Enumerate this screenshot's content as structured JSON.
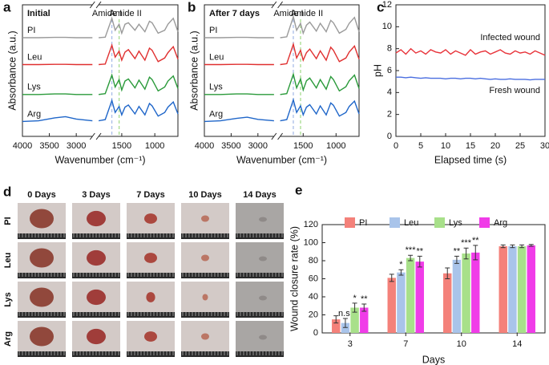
{
  "chart_data": [
    {
      "type": "line",
      "panel_label": "a",
      "title": "Initial",
      "x_label": "Wavenumber (cm⁻¹)",
      "y_label": "Absorbance (a.u.)",
      "xlim": [
        4000,
        650
      ],
      "xbreak": [
        2700,
        1850
      ],
      "xticks": [
        4000,
        3500,
        3000,
        1500,
        1000
      ],
      "ylim": [
        0,
        4.4
      ],
      "legend": "left",
      "x": [
        4000,
        3700,
        3400,
        3200,
        3000,
        2700,
        1850,
        1750,
        1650,
        1600,
        1540,
        1500,
        1450,
        1400,
        1300,
        1240,
        1150,
        1080,
        1040,
        950,
        850,
        800,
        720,
        650
      ],
      "annotations": [
        {
          "text": "Amide I",
          "x": 1650,
          "color": "#a9bde8"
        },
        {
          "text": "Amide II",
          "x": 1540,
          "color": "#a6dc8e"
        }
      ],
      "series": [
        {
          "name": "PI",
          "color": "#9a9a9a",
          "values": [
            3.3,
            3.3,
            3.31,
            3.31,
            3.3,
            3.3,
            3.3,
            3.32,
            3.95,
            3.55,
            3.75,
            3.45,
            3.75,
            3.8,
            3.55,
            3.75,
            3.5,
            3.85,
            3.8,
            3.45,
            3.55,
            3.75,
            3.95,
            3.5
          ]
        },
        {
          "name": "Leu",
          "color": "#e03030",
          "values": [
            2.4,
            2.4,
            2.41,
            2.41,
            2.4,
            2.4,
            2.4,
            2.42,
            3.05,
            2.65,
            2.85,
            2.55,
            2.82,
            2.9,
            2.6,
            2.85,
            2.55,
            2.95,
            2.88,
            2.5,
            2.62,
            2.8,
            3.0,
            2.58
          ]
        },
        {
          "name": "Lys",
          "color": "#2a9a3a",
          "values": [
            1.4,
            1.4,
            1.42,
            1.42,
            1.4,
            1.4,
            1.4,
            1.43,
            2.05,
            1.65,
            1.9,
            1.55,
            1.85,
            1.92,
            1.62,
            1.88,
            1.58,
            1.98,
            1.9,
            1.52,
            1.65,
            1.85,
            2.02,
            1.6
          ]
        },
        {
          "name": "Arg",
          "color": "#1f66c9",
          "values": [
            0.5,
            0.52,
            0.62,
            0.66,
            0.58,
            0.52,
            0.52,
            0.56,
            1.2,
            0.8,
            1.0,
            0.72,
            0.98,
            1.05,
            0.75,
            1.0,
            0.72,
            1.1,
            1.02,
            0.68,
            0.8,
            0.98,
            1.15,
            0.75
          ]
        }
      ]
    },
    {
      "type": "line",
      "panel_label": "b",
      "title": "After 7 days",
      "x_label": "Wavenumber (cm⁻¹)",
      "y_label": "Absorbance (a.u.)",
      "xlim": [
        4000,
        650
      ],
      "xbreak": [
        2700,
        1850
      ],
      "xticks": [
        4000,
        3500,
        3000,
        1500,
        1000
      ],
      "ylim": [
        0,
        4.4
      ],
      "legend": "left",
      "x": [
        4000,
        3700,
        3400,
        3200,
        3000,
        2700,
        1850,
        1750,
        1650,
        1600,
        1540,
        1500,
        1450,
        1400,
        1300,
        1240,
        1150,
        1080,
        1040,
        950,
        850,
        800,
        720,
        650
      ],
      "annotations": [
        {
          "text": "Amide I",
          "x": 1650,
          "color": "#a9bde8"
        },
        {
          "text": "Amide II",
          "x": 1540,
          "color": "#a6dc8e"
        }
      ],
      "series": [
        {
          "name": "PI",
          "color": "#9a9a9a",
          "values": [
            3.3,
            3.3,
            3.31,
            3.31,
            3.3,
            3.3,
            3.3,
            3.33,
            4.0,
            3.55,
            3.78,
            3.45,
            3.72,
            3.82,
            3.52,
            3.78,
            3.5,
            3.88,
            3.8,
            3.45,
            3.58,
            3.78,
            3.98,
            3.5
          ]
        },
        {
          "name": "Leu",
          "color": "#e03030",
          "values": [
            2.4,
            2.4,
            2.41,
            2.41,
            2.4,
            2.4,
            2.4,
            2.43,
            3.08,
            2.62,
            2.88,
            2.55,
            2.8,
            2.92,
            2.6,
            2.86,
            2.55,
            2.98,
            2.88,
            2.5,
            2.62,
            2.82,
            3.02,
            2.58
          ]
        },
        {
          "name": "Lys",
          "color": "#2a9a3a",
          "values": [
            1.4,
            1.4,
            1.42,
            1.42,
            1.4,
            1.4,
            1.4,
            1.43,
            2.08,
            1.62,
            1.92,
            1.55,
            1.86,
            1.95,
            1.62,
            1.9,
            1.58,
            2.0,
            1.9,
            1.52,
            1.66,
            1.86,
            2.05,
            1.6
          ]
        },
        {
          "name": "Arg",
          "color": "#1f66c9",
          "values": [
            0.5,
            0.52,
            0.6,
            0.64,
            0.57,
            0.52,
            0.52,
            0.56,
            1.22,
            0.8,
            1.02,
            0.72,
            0.98,
            1.06,
            0.75,
            1.02,
            0.72,
            1.12,
            1.04,
            0.68,
            0.8,
            1.0,
            1.18,
            0.75
          ]
        }
      ]
    },
    {
      "type": "line",
      "panel_label": "c",
      "x_label": "Elapsed time (s)",
      "y_label": "pH",
      "xlim": [
        0,
        30
      ],
      "xticks": [
        0,
        5,
        10,
        15,
        20,
        25,
        30
      ],
      "ylim": [
        0,
        12
      ],
      "yticks": [
        0,
        2,
        4,
        6,
        8,
        10,
        12
      ],
      "legend": "right",
      "x": [
        0,
        1,
        2,
        3,
        4,
        5,
        6,
        7,
        8,
        9,
        10,
        11,
        12,
        13,
        14,
        15,
        16,
        17,
        18,
        19,
        20,
        21,
        22,
        23,
        24,
        25,
        26,
        27,
        28,
        29,
        30
      ],
      "series": [
        {
          "name": "Infected wound",
          "color": "#e8333a",
          "values": [
            7.6,
            7.9,
            7.5,
            8.0,
            7.6,
            7.8,
            7.5,
            7.9,
            7.7,
            7.6,
            7.9,
            7.5,
            7.8,
            7.6,
            7.4,
            7.9,
            7.5,
            7.7,
            7.8,
            7.5,
            7.7,
            7.9,
            7.6,
            7.5,
            7.8,
            7.6,
            7.7,
            7.5,
            7.8,
            7.6,
            7.4
          ]
        },
        {
          "name": "Fresh wound",
          "color": "#4a6ee0",
          "values": [
            5.4,
            5.4,
            5.35,
            5.4,
            5.35,
            5.3,
            5.35,
            5.3,
            5.3,
            5.3,
            5.25,
            5.3,
            5.3,
            5.25,
            5.3,
            5.3,
            5.25,
            5.3,
            5.25,
            5.2,
            5.25,
            5.2,
            5.2,
            5.25,
            5.2,
            5.2,
            5.2,
            5.15,
            5.2,
            5.2,
            5.2
          ]
        }
      ]
    },
    {
      "type": "bar",
      "panel_label": "e",
      "x_label": "Days",
      "y_label": "Wound closure rate (%)",
      "categories": [
        "3",
        "7",
        "10",
        "14"
      ],
      "ylim": [
        0,
        120
      ],
      "yticks": [
        0,
        20,
        40,
        60,
        80,
        100,
        120
      ],
      "legend": "top",
      "series": [
        {
          "name": "PI",
          "color": "#f4817a",
          "values": [
            15,
            61,
            66,
            96
          ],
          "errors": [
            4,
            4,
            6,
            1.5
          ],
          "sig": [
            null,
            null,
            null,
            null
          ]
        },
        {
          "name": "Leu",
          "color": "#a9c4ea",
          "values": [
            11,
            67,
            81,
            96
          ],
          "errors": [
            5,
            3,
            4,
            1.5
          ],
          "sig": [
            "n.s.",
            "*",
            "**",
            null
          ]
        },
        {
          "name": "Lys",
          "color": "#a8e08a",
          "values": [
            28,
            83,
            88,
            96
          ],
          "errors": [
            5,
            3,
            6,
            1.5
          ],
          "sig": [
            "*",
            "***",
            "***",
            null
          ]
        },
        {
          "name": "Arg",
          "color": "#f03ce8",
          "values": [
            28,
            79,
            89,
            97
          ],
          "errors": [
            4,
            6,
            8,
            1
          ],
          "sig": [
            "**",
            "**",
            "**",
            null
          ]
        }
      ]
    }
  ],
  "photo_grid": {
    "panel_label": "d",
    "columns": [
      "0 Days",
      "3 Days",
      "7 Days",
      "10 Days",
      "14 Days"
    ],
    "rows": [
      "PI",
      "Leu",
      "Lys",
      "Arg"
    ]
  }
}
